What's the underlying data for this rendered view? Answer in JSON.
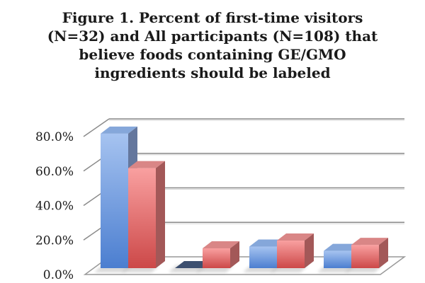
{
  "chart": {
    "title_lines": [
      "Figure 1. Percent of first-time visitors",
      "(N=32) and All participants (N=108) that",
      "believe foods containing GE/GMO",
      "ingredients should be labeled"
    ]
  },
  "chart_data": {
    "type": "bar",
    "style": "3d-clustered-column",
    "title": "Figure 1. Percent of first-time visitors (N=32) and All participants (N=108) that believe foods containing GE/GMO ingredients should be labeled",
    "categories": [
      "",
      "",
      "",
      ""
    ],
    "series": [
      {
        "name": "First-time visitors (N=32)",
        "values": [
          78,
          0,
          12.5,
          10
        ],
        "color_top_light": "#A6C3F0",
        "color_bottom_dark": "#4B7ED0",
        "color_top_face": "#85A7DA",
        "color_side_face": "#64779D"
      },
      {
        "name": "All participants (N=108)",
        "values": [
          58,
          11.5,
          16,
          13.5
        ],
        "color_top_light": "#F9A0A0",
        "color_bottom_dark": "#CC4848",
        "color_top_face": "#D98686",
        "color_side_face": "#A35858"
      }
    ],
    "zero_value_bar_color": "#3D5070",
    "ylim": [
      0,
      80
    ],
    "yticks": [
      {
        "value": 80,
        "label": "80.0%"
      },
      {
        "value": 60,
        "label": "60.0%"
      },
      {
        "value": 40,
        "label": "40.0%"
      },
      {
        "value": 20,
        "label": "20.0%"
      },
      {
        "value": 0,
        "label": "0.0%"
      }
    ],
    "xlabel": "",
    "ylabel": "",
    "grid": true,
    "legend": "none",
    "colors": {
      "gridline": "#8A8A8A",
      "gridline_shadow": "#D2D2D2",
      "floor_stroke": "#999999",
      "floor_fill": "#FFFFFF",
      "bar_shadow": "#777777",
      "axis_text": "#1A1A1A",
      "title_text": "#1A1A1A",
      "background": "#FFFFFF"
    }
  }
}
